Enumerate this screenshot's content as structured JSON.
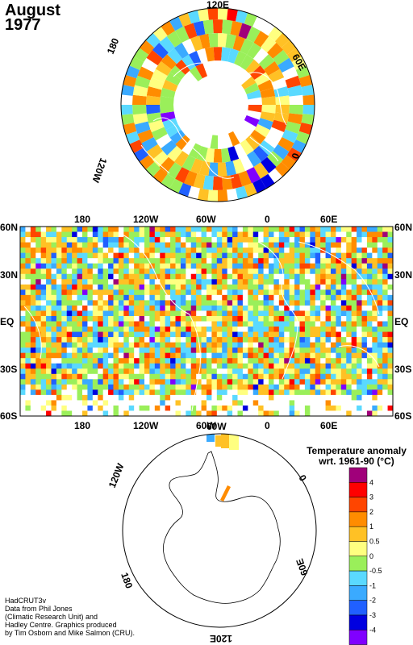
{
  "title": {
    "month": "August",
    "year": "1977"
  },
  "north_polar": {
    "labels": {
      "top": "120E",
      "upper_left": "180",
      "upper_right": "60E",
      "lower_left": "120W",
      "right": "0"
    }
  },
  "main_map": {
    "lon_labels": [
      "180",
      "120W",
      "60W",
      "0",
      "60E"
    ],
    "lat_labels": [
      "60N",
      "30N",
      "EQ",
      "30S",
      "60S"
    ]
  },
  "south_polar": {
    "labels": {
      "top": "60W",
      "upper_left": "120W",
      "right": "0",
      "lower_left": "180",
      "lower_right": "60E",
      "bottom": "120E"
    }
  },
  "legend": {
    "title_line1": "Temperature anomaly",
    "title_line2": "wrt. 1961-90  (°C)",
    "bins": [
      {
        "label": "4",
        "color": "#a0007a"
      },
      {
        "label": "3",
        "color": "#ff0000"
      },
      {
        "label": "2",
        "color": "#ff4500"
      },
      {
        "label": "1",
        "color": "#ff8c00"
      },
      {
        "label": "0.5",
        "color": "#ffc125"
      },
      {
        "label": "0",
        "color": "#ffff80"
      },
      {
        "label": "-0.5",
        "color": "#9aef5a"
      },
      {
        "label": "-1",
        "color": "#5ad9ff"
      },
      {
        "label": "-2",
        "color": "#3aaaff"
      },
      {
        "label": "-3",
        "color": "#2060ff"
      },
      {
        "label": "-4",
        "color": "#0000e0"
      },
      {
        "label": "",
        "color": "#8000ff"
      }
    ]
  },
  "credits": {
    "line1": "HadCRUT3v",
    "line2": "Data from Phil Jones",
    "line3": "(Climatic Research Unit) and",
    "line4": "Hadley Centre.  Graphics produced",
    "line5": "by Tim Osborn and Mike Salmon (CRU)."
  }
}
